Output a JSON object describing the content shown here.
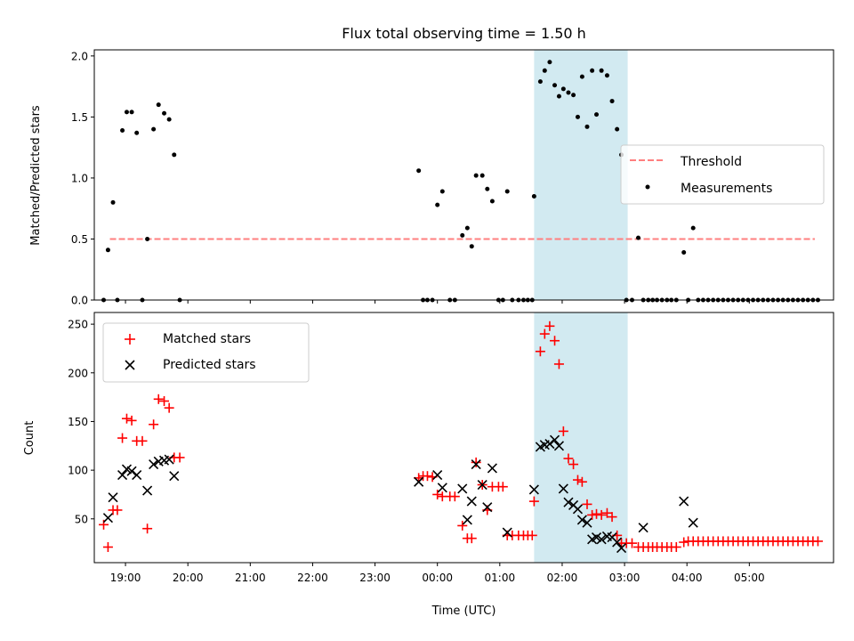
{
  "chart_data": [
    {
      "type": "scatter",
      "title": "Flux total observing time = 1.50 h",
      "ylabel": "Matched/Predicted stars",
      "xlabel": "",
      "ylim": [
        0,
        2.05
      ],
      "yticks": [
        0.0,
        0.5,
        1.0,
        1.5,
        2.0
      ],
      "ytick_labels": [
        "0.0",
        "0.5",
        "1.0",
        "1.5",
        "2.0"
      ],
      "x_unit": "hours since 18:00 UTC",
      "xlim": [
        0.5,
        12.35
      ],
      "shaded_interval": [
        7.55,
        9.05
      ],
      "shaded_color": "#add8e6",
      "legend_position": "center right",
      "series": [
        {
          "name": "Threshold",
          "kind": "dashed-line",
          "color": "#ff7f7f",
          "x": [
            0.75,
            12.05
          ],
          "y": [
            0.5,
            0.5
          ]
        },
        {
          "name": "Measurements",
          "kind": "points",
          "color": "#000000",
          "points": [
            [
              0.65,
              0
            ],
            [
              0.72,
              0.41
            ],
            [
              0.8,
              0.8
            ],
            [
              0.87,
              0
            ],
            [
              0.95,
              1.39
            ],
            [
              1.02,
              1.54
            ],
            [
              1.1,
              1.54
            ],
            [
              1.18,
              1.37
            ],
            [
              1.27,
              0
            ],
            [
              1.35,
              0.5
            ],
            [
              1.45,
              1.4
            ],
            [
              1.53,
              1.6
            ],
            [
              1.62,
              1.53
            ],
            [
              1.7,
              1.48
            ],
            [
              1.78,
              1.19
            ],
            [
              1.87,
              0
            ],
            [
              5.7,
              1.06
            ],
            [
              5.77,
              0
            ],
            [
              5.84,
              0
            ],
            [
              5.92,
              0
            ],
            [
              6.0,
              0.78
            ],
            [
              6.08,
              0.89
            ],
            [
              6.2,
              0
            ],
            [
              6.28,
              0
            ],
            [
              6.4,
              0.53
            ],
            [
              6.48,
              0.59
            ],
            [
              6.55,
              0.44
            ],
            [
              6.62,
              1.02
            ],
            [
              6.72,
              1.02
            ],
            [
              6.8,
              0.91
            ],
            [
              6.88,
              0.81
            ],
            [
              6.98,
              0
            ],
            [
              7.05,
              0
            ],
            [
              7.12,
              0.89
            ],
            [
              7.2,
              0
            ],
            [
              7.3,
              0
            ],
            [
              7.38,
              0
            ],
            [
              7.45,
              0
            ],
            [
              7.52,
              0
            ],
            [
              7.55,
              0.85
            ],
            [
              7.65,
              1.79
            ],
            [
              7.72,
              1.88
            ],
            [
              7.8,
              1.95
            ],
            [
              7.88,
              1.76
            ],
            [
              7.95,
              1.67
            ],
            [
              8.02,
              1.73
            ],
            [
              8.1,
              1.7
            ],
            [
              8.18,
              1.68
            ],
            [
              8.25,
              1.5
            ],
            [
              8.32,
              1.83
            ],
            [
              8.4,
              1.42
            ],
            [
              8.48,
              1.88
            ],
            [
              8.55,
              1.52
            ],
            [
              8.63,
              1.88
            ],
            [
              8.72,
              1.84
            ],
            [
              8.8,
              1.63
            ],
            [
              8.88,
              1.4
            ],
            [
              8.95,
              1.19
            ],
            [
              9.03,
              0
            ],
            [
              9.12,
              0
            ],
            [
              9.22,
              0.51
            ],
            [
              9.3,
              0
            ],
            [
              9.38,
              0
            ],
            [
              9.45,
              0
            ],
            [
              9.52,
              0
            ],
            [
              9.6,
              0
            ],
            [
              9.68,
              0
            ],
            [
              9.75,
              0
            ],
            [
              9.83,
              0
            ],
            [
              9.95,
              0.39
            ],
            [
              10.02,
              0
            ],
            [
              10.1,
              0.59
            ],
            [
              10.18,
              0
            ],
            [
              10.26,
              0
            ],
            [
              10.34,
              0
            ],
            [
              10.42,
              0
            ],
            [
              10.5,
              0
            ],
            [
              10.58,
              0
            ],
            [
              10.66,
              0
            ],
            [
              10.74,
              0
            ],
            [
              10.82,
              0
            ],
            [
              10.9,
              0
            ],
            [
              10.98,
              0
            ],
            [
              11.06,
              0
            ],
            [
              11.14,
              0
            ],
            [
              11.22,
              0
            ],
            [
              11.3,
              0
            ],
            [
              11.38,
              0
            ],
            [
              11.46,
              0
            ],
            [
              11.54,
              0
            ],
            [
              11.62,
              0
            ],
            [
              11.7,
              0
            ],
            [
              11.78,
              0
            ],
            [
              11.86,
              0
            ],
            [
              11.94,
              0
            ],
            [
              12.02,
              0
            ],
            [
              12.1,
              0
            ]
          ]
        }
      ]
    },
    {
      "type": "scatter",
      "title": "",
      "ylabel": "Count",
      "xlabel": "Time (UTC)",
      "ylim": [
        5,
        262
      ],
      "yticks": [
        50,
        100,
        150,
        200,
        250
      ],
      "ytick_labels": [
        "50",
        "100",
        "150",
        "200",
        "250"
      ],
      "x_unit": "hours since 18:00 UTC",
      "xlim": [
        0.5,
        12.35
      ],
      "xticks": [
        1,
        2,
        3,
        4,
        5,
        6,
        7,
        8,
        9,
        10,
        11
      ],
      "xtick_labels": [
        "19:00",
        "20:00",
        "21:00",
        "22:00",
        "23:00",
        "00:00",
        "01:00",
        "02:00",
        "03:00",
        "04:00",
        "05:00"
      ],
      "shaded_interval": [
        7.55,
        9.05
      ],
      "shaded_color": "#add8e6",
      "legend_position": "upper left",
      "series": [
        {
          "name": "Matched stars",
          "marker": "+",
          "color": "#ff0000",
          "points": [
            [
              0.65,
              44
            ],
            [
              0.72,
              21
            ],
            [
              0.8,
              59
            ],
            [
              0.87,
              59
            ],
            [
              0.95,
              133
            ],
            [
              1.02,
              153
            ],
            [
              1.1,
              151
            ],
            [
              1.18,
              130
            ],
            [
              1.27,
              130
            ],
            [
              1.35,
              40
            ],
            [
              1.45,
              147
            ],
            [
              1.53,
              173
            ],
            [
              1.62,
              171
            ],
            [
              1.7,
              164
            ],
            [
              1.78,
              113
            ],
            [
              1.87,
              113
            ],
            [
              5.7,
              92
            ],
            [
              5.77,
              94
            ],
            [
              5.84,
              94
            ],
            [
              5.92,
              93
            ],
            [
              6.0,
              75
            ],
            [
              6.08,
              73
            ],
            [
              6.2,
              73
            ],
            [
              6.28,
              73
            ],
            [
              6.4,
              43
            ],
            [
              6.48,
              30
            ],
            [
              6.55,
              30
            ],
            [
              6.62,
              108
            ],
            [
              6.72,
              85
            ],
            [
              6.8,
              59
            ],
            [
              6.88,
              83
            ],
            [
              6.98,
              83
            ],
            [
              7.05,
              83
            ],
            [
              7.12,
              33
            ],
            [
              7.2,
              33
            ],
            [
              7.3,
              33
            ],
            [
              7.38,
              33
            ],
            [
              7.45,
              33
            ],
            [
              7.52,
              33
            ],
            [
              7.55,
              68
            ],
            [
              7.65,
              222
            ],
            [
              7.72,
              240
            ],
            [
              7.8,
              248
            ],
            [
              7.88,
              233
            ],
            [
              7.95,
              209
            ],
            [
              8.02,
              140
            ],
            [
              8.1,
              112
            ],
            [
              8.18,
              106
            ],
            [
              8.25,
              90
            ],
            [
              8.32,
              88
            ],
            [
              8.4,
              65
            ],
            [
              8.48,
              54
            ],
            [
              8.55,
              55
            ],
            [
              8.63,
              54
            ],
            [
              8.72,
              56
            ],
            [
              8.8,
              52
            ],
            [
              8.88,
              33
            ],
            [
              8.95,
              25
            ],
            [
              9.03,
              25
            ],
            [
              9.12,
              25
            ],
            [
              9.22,
              21
            ],
            [
              9.3,
              21
            ],
            [
              9.38,
              21
            ],
            [
              9.45,
              21
            ],
            [
              9.52,
              21
            ],
            [
              9.6,
              21
            ],
            [
              9.68,
              21
            ],
            [
              9.75,
              21
            ],
            [
              9.83,
              21
            ],
            [
              9.95,
              26
            ],
            [
              10.02,
              27
            ],
            [
              10.1,
              27
            ],
            [
              10.18,
              27
            ],
            [
              10.26,
              27
            ],
            [
              10.34,
              27
            ],
            [
              10.42,
              27
            ],
            [
              10.5,
              27
            ],
            [
              10.58,
              27
            ],
            [
              10.66,
              27
            ],
            [
              10.74,
              27
            ],
            [
              10.82,
              27
            ],
            [
              10.9,
              27
            ],
            [
              10.98,
              27
            ],
            [
              11.06,
              27
            ],
            [
              11.14,
              27
            ],
            [
              11.22,
              27
            ],
            [
              11.3,
              27
            ],
            [
              11.38,
              27
            ],
            [
              11.46,
              27
            ],
            [
              11.54,
              27
            ],
            [
              11.62,
              27
            ],
            [
              11.7,
              27
            ],
            [
              11.78,
              27
            ],
            [
              11.86,
              27
            ],
            [
              11.94,
              27
            ],
            [
              12.02,
              27
            ],
            [
              12.1,
              27
            ]
          ]
        },
        {
          "name": "Predicted stars",
          "marker": "x",
          "color": "#000000",
          "points": [
            [
              0.72,
              51
            ],
            [
              0.8,
              72
            ],
            [
              0.95,
              95
            ],
            [
              1.02,
              101
            ],
            [
              1.1,
              99
            ],
            [
              1.18,
              95
            ],
            [
              1.35,
              79
            ],
            [
              1.45,
              106
            ],
            [
              1.53,
              109
            ],
            [
              1.62,
              110
            ],
            [
              1.7,
              111
            ],
            [
              1.78,
              94
            ],
            [
              5.7,
              88
            ],
            [
              6.0,
              95
            ],
            [
              6.08,
              82
            ],
            [
              6.4,
              81
            ],
            [
              6.48,
              49
            ],
            [
              6.55,
              68
            ],
            [
              6.62,
              106
            ],
            [
              6.72,
              85
            ],
            [
              6.8,
              62
            ],
            [
              6.88,
              102
            ],
            [
              7.12,
              36
            ],
            [
              7.55,
              80
            ],
            [
              7.65,
              124
            ],
            [
              7.72,
              126
            ],
            [
              7.8,
              127
            ],
            [
              7.88,
              131
            ],
            [
              7.95,
              125
            ],
            [
              8.02,
              81
            ],
            [
              8.1,
              67
            ],
            [
              8.18,
              64
            ],
            [
              8.25,
              60
            ],
            [
              8.32,
              49
            ],
            [
              8.4,
              46
            ],
            [
              8.48,
              29
            ],
            [
              8.55,
              31
            ],
            [
              8.63,
              29
            ],
            [
              8.72,
              32
            ],
            [
              8.8,
              31
            ],
            [
              8.88,
              26
            ],
            [
              8.95,
              20
            ],
            [
              9.3,
              41
            ],
            [
              9.95,
              68
            ],
            [
              10.1,
              46
            ]
          ]
        }
      ]
    }
  ]
}
